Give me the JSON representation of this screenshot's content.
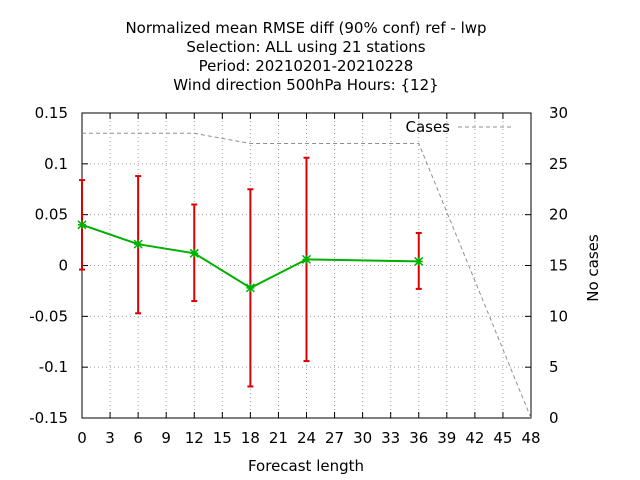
{
  "chart_data": {
    "type": "line",
    "title_lines": [
      "Normalized mean RMSE diff (90% conf) ref - lwp",
      "Selection: ALL using    21 stations",
      "Period: 20210201-20210228",
      "Wind direction 500hPa   Hours: {12}"
    ],
    "xlabel": "Forecast length",
    "ylabel": "",
    "y2label": "No cases",
    "xlim": [
      0,
      48
    ],
    "ylim": [
      -0.15,
      0.15
    ],
    "y2lim": [
      0,
      30
    ],
    "xticks": [
      "0",
      "3",
      "6",
      "9",
      "12",
      "15",
      "18",
      "21",
      "24",
      "27",
      "30",
      "33",
      "36",
      "39",
      "42",
      "45",
      "48"
    ],
    "yticks": [
      "0.15",
      "0.1",
      "0.05",
      "0",
      "-0.05",
      "-0.1",
      "-0.15"
    ],
    "y2ticks": [
      "30",
      "25",
      "20",
      "15",
      "10",
      "5",
      "0"
    ],
    "grid": true,
    "series": [
      {
        "type": "line_with_errorbars",
        "color": "#00b000",
        "error_color": "#dd0000",
        "x": [
          0,
          6,
          12,
          18,
          24,
          36
        ],
        "y": [
          0.04,
          0.021,
          0.012,
          -0.022,
          0.006,
          0.004
        ],
        "err_low": [
          -0.004,
          -0.047,
          -0.035,
          -0.119,
          -0.094,
          -0.023
        ],
        "err_high": [
          0.084,
          0.088,
          0.06,
          0.075,
          0.106,
          0.032
        ]
      },
      {
        "name": "Cases",
        "type": "dashed_line",
        "axis": "y2",
        "color": "#909090",
        "x": [
          0,
          6,
          12,
          18,
          24,
          30,
          36,
          48
        ],
        "y": [
          28,
          28,
          28,
          27,
          27,
          27,
          27,
          0
        ]
      }
    ],
    "legend": {
      "position": "top-right",
      "entries": [
        "Cases"
      ]
    }
  }
}
